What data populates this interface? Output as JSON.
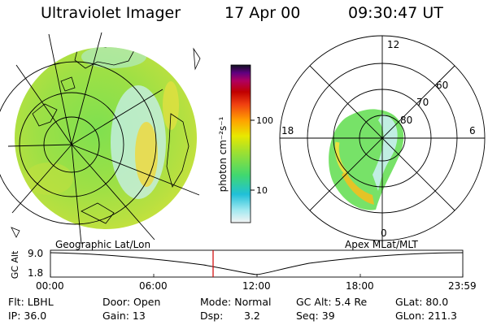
{
  "header": {
    "title": "Ultraviolet Imager",
    "date": "17 Apr 00",
    "time": "09:30:47 UT"
  },
  "colorbar": {
    "unit_label": "photon cm⁻²s⁻¹",
    "ticks": [
      "100",
      "10"
    ],
    "colors": [
      "#f0f0f0",
      "#a0e8f0",
      "#20c0d8",
      "#40d870",
      "#a0e030",
      "#e8e800",
      "#ffa000",
      "#f04010",
      "#c00000",
      "#b00060",
      "#600080",
      "#101020"
    ]
  },
  "polar_plot": {
    "mlt_labels": {
      "top": "12",
      "left": "18",
      "right": "6",
      "bottom": "0"
    },
    "lat_labels": [
      "80",
      "70",
      "60"
    ]
  },
  "panel_labels": {
    "left": "Geographic Lat/Lon",
    "right": "Apex MLat/MLT"
  },
  "altitude_plot": {
    "ylabel": "GC Alt",
    "yticks": [
      "9.0",
      "1.8"
    ],
    "xticks": [
      "00:00",
      "06:00",
      "12:00",
      "18:00",
      "23:59"
    ],
    "marker_color": "#d00000"
  },
  "info": {
    "filter": "Flt: LBHL",
    "ip": "IP: 36.0",
    "door": "Door: Open",
    "gain": "Gain: 13",
    "mode": "Mode: Normal",
    "dsp_label": "Dsp:",
    "dsp_value": "3.2",
    "gc_alt": "GC Alt: 5.4 Re",
    "seq": "Seq: 39",
    "glat": "GLat: 80.0",
    "glon": "GLon: 211.3"
  }
}
